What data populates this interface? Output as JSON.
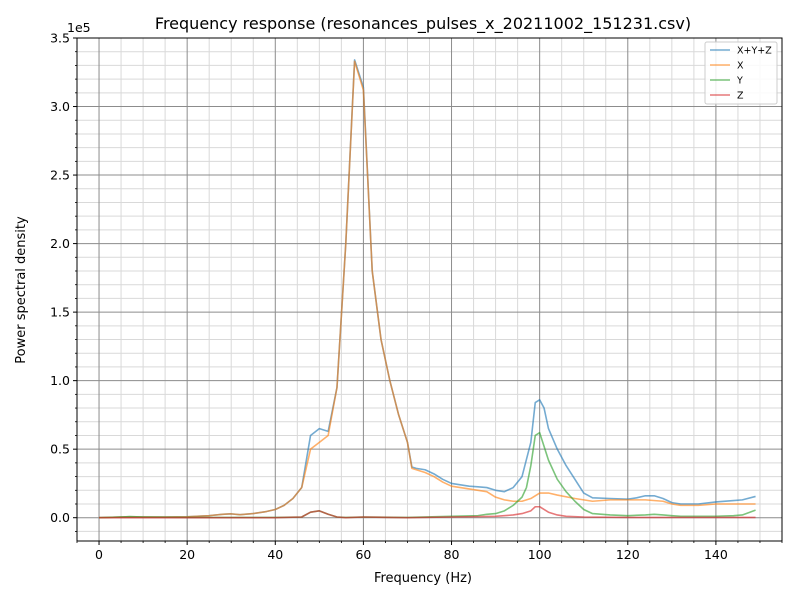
{
  "chart_data": {
    "type": "line",
    "title": "Frequency response (resonances_pulses_x_20211002_151231.csv)",
    "xlabel": "Frequency (Hz)",
    "ylabel": "Power spectral density",
    "y_multiplier_label": "1e5",
    "y_scale": 100000,
    "xlim": [
      -5,
      155
    ],
    "ylim": [
      -0.17,
      3.5
    ],
    "xticks": [
      0,
      20,
      40,
      60,
      80,
      100,
      120,
      140
    ],
    "xtick_labels": [
      "0",
      "20",
      "40",
      "60",
      "80",
      "100",
      "120",
      "140"
    ],
    "x_minor_step": 5,
    "yticks": [
      0.0,
      0.5,
      1.0,
      1.5,
      2.0,
      2.5,
      3.0,
      3.5
    ],
    "ytick_labels": [
      "0.0",
      "0.5",
      "1.0",
      "1.5",
      "2.0",
      "2.5",
      "3.0",
      "3.5"
    ],
    "y_minor_step": 0.1,
    "grid": true,
    "legend_position": "top-right",
    "series": [
      {
        "name": "X+Y+Z",
        "color": "#1f77b4",
        "x": [
          0,
          5,
          10,
          15,
          20,
          25,
          28,
          30,
          32,
          35,
          38,
          40,
          42,
          44,
          46,
          48,
          50,
          52,
          54,
          56,
          58,
          60,
          62,
          64,
          66,
          68,
          70,
          71,
          72,
          74,
          76,
          78,
          80,
          82,
          84,
          86,
          88,
          90,
          92,
          94,
          96,
          98,
          99,
          100,
          101,
          102,
          104,
          106,
          108,
          110,
          112,
          116,
          120,
          122,
          124,
          126,
          128,
          130,
          132,
          136,
          140,
          144,
          146,
          149
        ],
        "y": [
          0.0,
          0.005,
          0.005,
          0.005,
          0.007,
          0.015,
          0.025,
          0.028,
          0.022,
          0.03,
          0.045,
          0.06,
          0.09,
          0.14,
          0.22,
          0.6,
          0.65,
          0.63,
          0.95,
          2.0,
          3.34,
          3.14,
          1.8,
          1.3,
          1.0,
          0.75,
          0.55,
          0.37,
          0.36,
          0.35,
          0.32,
          0.28,
          0.25,
          0.24,
          0.23,
          0.225,
          0.22,
          0.2,
          0.19,
          0.22,
          0.3,
          0.55,
          0.84,
          0.86,
          0.8,
          0.65,
          0.5,
          0.38,
          0.28,
          0.18,
          0.145,
          0.14,
          0.135,
          0.145,
          0.16,
          0.16,
          0.14,
          0.11,
          0.1,
          0.1,
          0.115,
          0.125,
          0.13,
          0.155
        ]
      },
      {
        "name": "X",
        "color": "#ff7f0e",
        "x": [
          0,
          5,
          10,
          15,
          20,
          25,
          28,
          30,
          32,
          35,
          38,
          40,
          42,
          44,
          46,
          48,
          50,
          52,
          54,
          56,
          58,
          60,
          62,
          64,
          66,
          68,
          70,
          71,
          72,
          74,
          76,
          78,
          80,
          82,
          84,
          86,
          88,
          90,
          92,
          94,
          96,
          98,
          100,
          102,
          104,
          108,
          110,
          112,
          116,
          120,
          124,
          128,
          130,
          132,
          136,
          140,
          144,
          149
        ],
        "y": [
          0.0,
          0.005,
          0.005,
          0.005,
          0.007,
          0.015,
          0.025,
          0.028,
          0.022,
          0.03,
          0.045,
          0.06,
          0.09,
          0.14,
          0.22,
          0.5,
          0.55,
          0.6,
          0.95,
          2.0,
          3.33,
          3.12,
          1.8,
          1.3,
          1.0,
          0.75,
          0.55,
          0.36,
          0.35,
          0.33,
          0.3,
          0.26,
          0.23,
          0.22,
          0.21,
          0.2,
          0.19,
          0.15,
          0.13,
          0.12,
          0.12,
          0.14,
          0.18,
          0.18,
          0.165,
          0.14,
          0.13,
          0.12,
          0.13,
          0.13,
          0.13,
          0.12,
          0.1,
          0.09,
          0.09,
          0.1,
          0.1,
          0.1
        ]
      },
      {
        "name": "Y",
        "color": "#2ca02c",
        "x": [
          0,
          5,
          7,
          10,
          20,
          30,
          40,
          46,
          48,
          50,
          52,
          54,
          56,
          60,
          70,
          80,
          86,
          88,
          90,
          92,
          94,
          96,
          97,
          98,
          99,
          100,
          101,
          102,
          104,
          106,
          108,
          110,
          112,
          116,
          120,
          124,
          126,
          128,
          130,
          132,
          136,
          140,
          144,
          146,
          149
        ],
        "y": [
          0.0,
          0.005,
          0.008,
          0.005,
          0.002,
          0.002,
          0.002,
          0.005,
          0.04,
          0.05,
          0.025,
          0.005,
          0.002,
          0.005,
          0.002,
          0.01,
          0.015,
          0.025,
          0.03,
          0.05,
          0.09,
          0.15,
          0.22,
          0.38,
          0.6,
          0.62,
          0.52,
          0.42,
          0.28,
          0.19,
          0.12,
          0.06,
          0.03,
          0.02,
          0.015,
          0.02,
          0.025,
          0.02,
          0.015,
          0.01,
          0.01,
          0.01,
          0.015,
          0.02,
          0.055
        ]
      },
      {
        "name": "Z",
        "color": "#d62728",
        "x": [
          0,
          10,
          20,
          30,
          40,
          46,
          48,
          50,
          52,
          54,
          56,
          60,
          70,
          80,
          90,
          94,
          96,
          98,
          99,
          100,
          101,
          102,
          104,
          106,
          110,
          120,
          130,
          140,
          149
        ],
        "y": [
          0.0,
          0.0,
          0.0,
          0.0,
          0.0,
          0.005,
          0.04,
          0.05,
          0.025,
          0.005,
          0.0,
          0.005,
          0.0,
          0.005,
          0.01,
          0.02,
          0.03,
          0.05,
          0.08,
          0.08,
          0.06,
          0.04,
          0.02,
          0.01,
          0.005,
          0.002,
          0.002,
          0.002,
          0.002
        ]
      }
    ]
  }
}
